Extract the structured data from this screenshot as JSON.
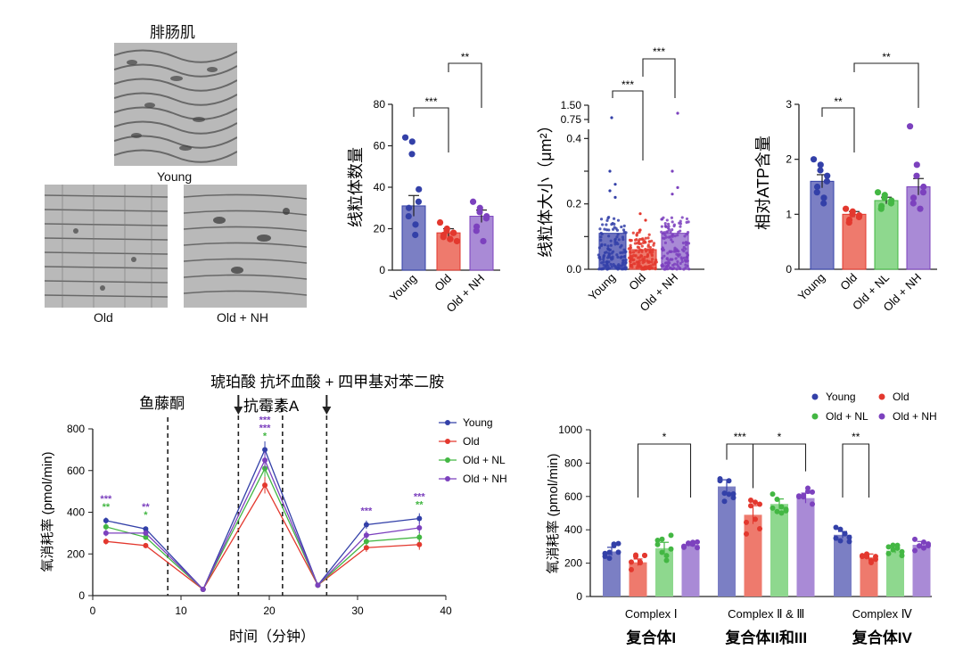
{
  "micrographs": {
    "title": "腓肠肌",
    "labels": [
      "Young",
      "Old",
      "Old + NH"
    ]
  },
  "chart_data": [
    {
      "id": "mito_count",
      "type": "bar",
      "ylabel": "线粒体数量",
      "categories": [
        "Young",
        "Old",
        "Old + NH"
      ],
      "values": [
        31,
        18,
        26
      ],
      "errors": [
        5,
        2,
        3
      ],
      "colors": [
        "#7b7fc4",
        "#ee7a6d",
        "#a98ad6"
      ],
      "dot_colors": [
        "#3340a8",
        "#e3382e",
        "#7c41be"
      ],
      "points": [
        [
          64,
          62,
          56,
          39,
          33,
          30,
          26,
          22,
          17
        ],
        [
          23,
          20,
          19,
          18,
          18,
          17,
          16,
          15,
          15,
          14
        ],
        [
          33,
          30,
          28,
          26,
          25,
          21,
          19,
          14
        ]
      ],
      "ylim": [
        0,
        80
      ],
      "yticks": [
        0,
        20,
        40,
        60,
        80
      ],
      "ytick_labels": [
        "0",
        "20",
        "40",
        "60",
        "80"
      ],
      "sig": [
        {
          "from": 0,
          "to": 1,
          "label": "***"
        },
        {
          "from": 1,
          "to": 2,
          "label": "**"
        }
      ]
    },
    {
      "id": "mito_size",
      "type": "bar",
      "ylabel": "线粒体大小（μm²）",
      "categories": [
        "Young",
        "Old",
        "Old + NH"
      ],
      "values": [
        0.11,
        0.06,
        0.11
      ],
      "colors": [
        "#6f73bf",
        "#ee7a6d",
        "#a98ad6"
      ],
      "dot_colors": [
        "#3340a8",
        "#e3382e",
        "#7c41be"
      ],
      "spreads": [
        0.16,
        0.12,
        0.16
      ],
      "outliers": [
        [
          0.3,
          0.26,
          0.24,
          0.22
        ],
        [
          0.17,
          0.15,
          0.12
        ],
        [
          0.3,
          0.25,
          0.23
        ]
      ],
      "ylim": [
        0,
        0.5
      ],
      "break_labels": [
        "0.75",
        "1.50"
      ],
      "yticks": [
        0,
        0.1,
        0.2,
        0.3,
        0.4
      ],
      "ytick_labels": [
        "0.0",
        "",
        "0.2",
        "",
        "0.4"
      ],
      "sig": [
        {
          "from": 0,
          "to": 1,
          "label": "***"
        },
        {
          "from": 1,
          "to": 2,
          "label": "***"
        }
      ]
    },
    {
      "id": "atp",
      "type": "bar",
      "ylabel": "相对ATP含量",
      "categories": [
        "Young",
        "Old",
        "Old + NL",
        "Old + NH"
      ],
      "values": [
        1.6,
        1.0,
        1.25,
        1.5
      ],
      "errors": [
        0.12,
        0.05,
        0.06,
        0.15
      ],
      "colors": [
        "#7b7fc4",
        "#ee7a6d",
        "#8ed88e",
        "#a98ad6"
      ],
      "dot_colors": [
        "#3340a8",
        "#e3382e",
        "#43b743",
        "#7c41be"
      ],
      "points": [
        [
          2.0,
          1.9,
          1.8,
          1.7,
          1.6,
          1.5,
          1.4,
          1.3,
          1.2
        ],
        [
          1.1,
          1.05,
          1.0,
          0.98,
          0.95,
          0.9,
          0.85
        ],
        [
          1.4,
          1.35,
          1.3,
          1.25,
          1.2,
          1.15,
          1.1
        ],
        [
          2.6,
          1.9,
          1.7,
          1.5,
          1.4,
          1.3,
          1.2,
          1.1
        ]
      ],
      "ylim": [
        0,
        3
      ],
      "yticks": [
        0,
        1,
        2,
        3
      ],
      "ytick_labels": [
        "0",
        "1",
        "2",
        "3"
      ],
      "sig": [
        {
          "from": 0,
          "to": 1,
          "label": "**"
        },
        {
          "from": 1,
          "to": 3,
          "label": "**"
        }
      ]
    },
    {
      "id": "ocr_time",
      "type": "line",
      "xlabel": "时间（分钟）",
      "ylabel": "氧消耗率 (pmol/min)",
      "xlim": [
        0,
        40
      ],
      "ylim": [
        0,
        800
      ],
      "xticks": [
        0,
        10,
        20,
        30,
        40
      ],
      "yticks": [
        0,
        200,
        400,
        600,
        800
      ],
      "x": [
        1.5,
        6,
        12.5,
        19.5,
        25.5,
        31,
        37
      ],
      "series": [
        {
          "name": "Young",
          "color": "#3340a8",
          "values": [
            360,
            320,
            30,
            700,
            50,
            340,
            370
          ]
        },
        {
          "name": "Old",
          "color": "#e3382e",
          "values": [
            260,
            240,
            30,
            530,
            50,
            230,
            245
          ]
        },
        {
          "name": "Old + NL",
          "color": "#43b743",
          "values": [
            330,
            280,
            30,
            610,
            50,
            260,
            280
          ]
        },
        {
          "name": "Old + NH",
          "color": "#7c41be",
          "values": [
            300,
            300,
            30,
            650,
            50,
            290,
            325
          ]
        }
      ],
      "errors": [
        15,
        12,
        5,
        40,
        5,
        20,
        25
      ],
      "injections": [
        {
          "x": 8.5,
          "label": "鱼藤酮"
        },
        {
          "x": 16.5,
          "label": "琥珀酸"
        },
        {
          "x": 21.5,
          "label": "抗霉素A"
        },
        {
          "x": 26.5,
          "label": ""
        }
      ],
      "header_text": "琥珀酸  抗坏血酸 + 四甲基对苯二胺",
      "stars": [
        {
          "x": 1.5,
          "rows": [
            {
              "t": "***",
              "c": "#7c41be"
            },
            {
              "t": "**",
              "c": "#43b743"
            }
          ]
        },
        {
          "x": 6,
          "rows": [
            {
              "t": "**",
              "c": "#7c41be"
            },
            {
              "t": "*",
              "c": "#43b743"
            }
          ]
        },
        {
          "x": 19.5,
          "rows": [
            {
              "t": "***",
              "c": "#7c41be"
            },
            {
              "t": "***",
              "c": "#7c41be"
            },
            {
              "t": "*",
              "c": "#43b743"
            }
          ]
        },
        {
          "x": 31,
          "rows": [
            {
              "t": "***",
              "c": "#7c41be"
            }
          ]
        },
        {
          "x": 37,
          "rows": [
            {
              "t": "***",
              "c": "#7c41be"
            },
            {
              "t": "**",
              "c": "#43b743"
            }
          ]
        }
      ]
    },
    {
      "id": "complexes",
      "type": "bar",
      "ylabel": "氧消耗率 (pmol/min)",
      "groups": [
        {
          "label": "Complex Ⅰ",
          "cn_label": "复合体I",
          "values": [
            270,
            205,
            290,
            310
          ]
        },
        {
          "label": "Complex Ⅱ & Ⅲ",
          "cn_label": "复合体II和III",
          "values": [
            660,
            490,
            555,
            590
          ]
        },
        {
          "label": "Complex Ⅳ",
          "cn_label": "复合体IV",
          "values": [
            370,
            235,
            275,
            310
          ]
        }
      ],
      "errors": [
        [
          25,
          20,
          35,
          8
        ],
        [
          40,
          55,
          30,
          30
        ],
        [
          20,
          20,
          15,
          20
        ]
      ],
      "series": [
        {
          "name": "Young",
          "color": "#7b7fc4",
          "dot": "#3340a8"
        },
        {
          "name": "Old",
          "color": "#ee7a6d",
          "dot": "#e3382e"
        },
        {
          "name": "Old + NL",
          "color": "#8ed88e",
          "dot": "#43b743"
        },
        {
          "name": "Old + NH",
          "color": "#a98ad6",
          "dot": "#7c41be"
        }
      ],
      "ylim": [
        0,
        1000
      ],
      "yticks": [
        0,
        200,
        400,
        600,
        800,
        1000
      ],
      "sig": [
        {
          "group": 0,
          "from": 1,
          "to": 3,
          "label": "*"
        },
        {
          "group": 1,
          "from": 0,
          "to": 1,
          "label": "***"
        },
        {
          "group": 1,
          "from": 1,
          "to": 3,
          "label": "*"
        },
        {
          "group": 2,
          "from": 0,
          "to": 1,
          "label": "**"
        }
      ]
    }
  ]
}
